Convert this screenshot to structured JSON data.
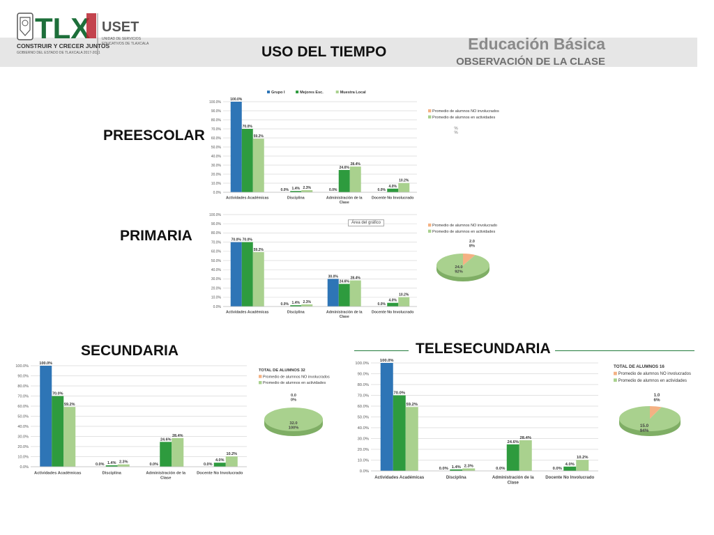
{
  "header": {
    "title": "USO DEL TIEMPO",
    "org_title": "Educación Básica",
    "org_subtitle": "OBSERVACIÓN DE LA CLASE",
    "logo_text": "TLX",
    "logo_caption": "CONSTRUIR Y CRECER JUNTOS",
    "logo_subcaption": "GOBIERNO DEL ESTADO DE TLAXCALA 2017-2021",
    "uset_text": "USET",
    "uset_caption_1": "UNIDAD DE SERVICIOS",
    "uset_caption_2": "EDUCATIVOS DE TLAXCALA"
  },
  "sections": {
    "preescolar": "PREESCOLAR",
    "primaria": "PRIMARIA",
    "secundaria": "SECUNDARIA",
    "telesecundaria": "TELESECUNDARIA"
  },
  "colors": {
    "grupo": "#2e75b6",
    "mejores": "#2e9b3e",
    "muestra": "#a9d18e",
    "pie_green": "#a9d18e",
    "pie_orange": "#f4b183",
    "rule": "#1f7a3a"
  },
  "tooltip": "Área del gráfico",
  "chart_data": [
    {
      "id": "preescolar_bar",
      "type": "bar",
      "categories": [
        "Actividades Académicas",
        "Disciplina",
        "Administración de la Clase",
        "Docente No Involucrado"
      ],
      "series": [
        {
          "name": "Grupo I",
          "values": [
            100.0,
            0.0,
            0.0,
            0.0
          ]
        },
        {
          "name": "Mejores Esc.",
          "values": [
            70.0,
            1.4,
            24.6,
            4.0
          ]
        },
        {
          "name": "Muestra Local",
          "values": [
            59.2,
            2.3,
            28.4,
            10.2
          ]
        }
      ],
      "labels": [
        [
          "100.0%",
          "0.0%",
          "0.0%",
          "0.0%"
        ],
        [
          "70.0%",
          "1.4%",
          "24.6%",
          "4.0%"
        ],
        [
          "59.2%",
          "2.3%",
          "28.4%",
          "10.2%"
        ]
      ],
      "ylim": [
        0,
        100
      ],
      "yticks": [
        "0.0%",
        "10.0%",
        "20.0%",
        "30.0%",
        "40.0%",
        "50.0%",
        "60.0%",
        "70.0%",
        "80.0%",
        "90.0%",
        "100.0%"
      ],
      "legend": "top"
    },
    {
      "id": "preescolar_pie",
      "type": "pie",
      "legend_entries": [
        "Promedio de alumnos NO involucrados",
        "Promedio de alumnos en actividades"
      ],
      "slices": [],
      "labels": [
        "%",
        "%"
      ]
    },
    {
      "id": "primaria_bar",
      "type": "bar",
      "categories": [
        "Actividades Académicas",
        "Disciplina",
        "Administración de la Clase",
        "Docente No Involucrado"
      ],
      "series": [
        {
          "values": [
            70.0,
            0.0,
            30.0,
            0.0
          ]
        },
        {
          "values": [
            70.0,
            1.4,
            24.6,
            4.0
          ]
        },
        {
          "values": [
            59.2,
            2.3,
            28.4,
            10.2
          ]
        }
      ],
      "labels": [
        [
          "70.0%",
          "0.0%",
          "30.0%",
          "0.0%"
        ],
        [
          "70.0%",
          "1.4%",
          "24.6%",
          "4.0%"
        ],
        [
          "59.2%",
          "2.3%",
          "28.4%",
          "10.2%"
        ]
      ],
      "ylim": [
        0,
        100
      ],
      "yticks": [
        "0.0%",
        "10.0%",
        "20.0%",
        "30.0%",
        "40.0%",
        "50.0%",
        "60.0%",
        "70.0%",
        "80.0%",
        "90.0%",
        "100.0%"
      ]
    },
    {
      "id": "primaria_pie",
      "type": "pie",
      "legend_entries": [
        "Promedio de alumnos NO involucrado",
        "Promedio de alumnos en actividades"
      ],
      "slices": [
        {
          "name": "Promedio de alumnos NO involucrado",
          "value": 2.0,
          "label": "2.0",
          "pct": "8%"
        },
        {
          "name": "Promedio de alumnos en actividades",
          "value": 24.0,
          "label": "24.0",
          "pct": "92%"
        }
      ]
    },
    {
      "id": "secundaria_bar",
      "type": "bar",
      "categories": [
        "Actividades Académicas",
        "Disciplina",
        "Administración de la Clase",
        "Docente No Involucrado"
      ],
      "series": [
        {
          "values": [
            100.0,
            0.0,
            0.0,
            0.0
          ]
        },
        {
          "values": [
            70.0,
            1.4,
            24.6,
            4.0
          ]
        },
        {
          "values": [
            59.2,
            2.3,
            28.4,
            10.2
          ]
        }
      ],
      "labels": [
        [
          "100.0%",
          "0.0%",
          "0.0%",
          "0.0%"
        ],
        [
          "70.0%",
          "1.4%",
          "24.6%",
          "4.0%"
        ],
        [
          "59.2%",
          "2.3%",
          "28.4%",
          "10.2%"
        ]
      ],
      "ylim": [
        0,
        100
      ],
      "yticks": [
        "0.0%",
        "10.0%",
        "20.0%",
        "30.0%",
        "40.0%",
        "50.0%",
        "60.0%",
        "70.0%",
        "80.0%",
        "90.0%",
        "100.0%"
      ]
    },
    {
      "id": "secundaria_pie",
      "type": "pie",
      "title": "TOTAL DE ALUMNOS 32",
      "legend_entries": [
        "Promedio de alumnos NO involucrados",
        "Promedio de alumnos en actividades"
      ],
      "slices": [
        {
          "name": "Promedio de alumnos NO involucrados",
          "value": 0.0,
          "label": "0.0",
          "pct": "0%"
        },
        {
          "name": "Promedio de alumnos en actividades",
          "value": 32.0,
          "label": "32.0",
          "pct": "100%"
        }
      ]
    },
    {
      "id": "telesecundaria_bar",
      "type": "bar",
      "categories": [
        "Actividades Académicas",
        "Disciplina",
        "Administración de la Clase",
        "Docente No Involucrado"
      ],
      "series": [
        {
          "values": [
            100.0,
            0.0,
            0.0,
            0.0
          ]
        },
        {
          "values": [
            70.0,
            1.4,
            24.6,
            4.0
          ]
        },
        {
          "values": [
            59.2,
            2.3,
            28.4,
            10.2
          ]
        }
      ],
      "labels": [
        [
          "100.0%",
          "0.0%",
          "0.0%",
          "0.0%"
        ],
        [
          "70.0%",
          "1.4%",
          "24.6%",
          "4.0%"
        ],
        [
          "59.2%",
          "2.3%",
          "28.4%",
          "10.2%"
        ]
      ],
      "ylim": [
        0,
        100
      ],
      "yticks": [
        "0.0%",
        "10.0%",
        "20.0%",
        "30.0%",
        "40.0%",
        "50.0%",
        "60.0%",
        "70.0%",
        "80.0%",
        "90.0%",
        "100.0%"
      ]
    },
    {
      "id": "telesecundaria_pie",
      "type": "pie",
      "title": "TOTAL DE ALUMNOS 16",
      "legend_entries": [
        "Promedio de alumnos NO involucrados",
        "Promedio de alumnos en actividades"
      ],
      "slices": [
        {
          "name": "Promedio de alumnos NO involucrados",
          "value": 1.0,
          "label": "1.0",
          "pct": "6%"
        },
        {
          "name": "Promedio de alumnos en actividades",
          "value": 15.0,
          "label": "15.0",
          "pct": "94%"
        }
      ]
    }
  ]
}
